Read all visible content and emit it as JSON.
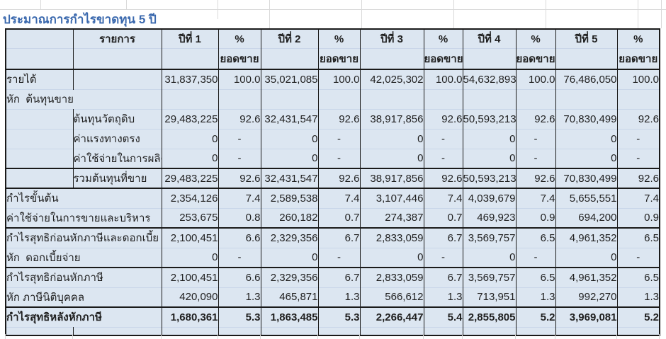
{
  "title": "ประมาณการกำไรขาดทุน 5 ปี",
  "colors": {
    "cell_fill": "#dce6f1",
    "title_blue": "#3b69ae",
    "dark_border": "#1a1a1a",
    "faint_grid": "#d9d9d9"
  },
  "table": {
    "item_header": "รายการ",
    "year_headers": [
      "ปีที่ 1",
      "ปีที่ 2",
      "ปีที่ 3",
      "ปีที่ 4",
      "ปีที่ 5"
    ],
    "pct_header": "%",
    "pct_subheader": "ยอดขาย",
    "rows": [
      {
        "label": "รายได้",
        "layout": "first",
        "values": [
          "31,837,350",
          "100.0",
          "35,021,085",
          "100.0",
          "42,025,302",
          "100.0",
          "54,632,893",
          "100.0",
          "76,486,050",
          "100.0"
        ]
      },
      {
        "label": "หัก  ต้นทุนขาย",
        "layout": "full",
        "values": [
          "",
          "",
          "",
          "",
          "",
          "",
          "",
          "",
          "",
          ""
        ]
      },
      {
        "label": "ต้นทุนวัตถุดิบ",
        "layout": "indent",
        "values": [
          "29,483,225",
          "92.6",
          "32,431,547",
          "92.6",
          "38,917,856",
          "92.6",
          "50,593,213",
          "92.6",
          "70,830,499",
          "92.6"
        ]
      },
      {
        "label": "ค่าแรงทางตรง",
        "layout": "indent",
        "values": [
          "0",
          "-",
          "0",
          "-",
          "0",
          "-",
          "0",
          "-",
          "0",
          "-"
        ]
      },
      {
        "label": "ค่าใช้จ่ายในการผลิต",
        "layout": "indent",
        "values": [
          "0",
          "-",
          "0",
          "-",
          "0",
          "-",
          "0",
          "-",
          "0",
          "-"
        ]
      },
      {
        "label": "รวมต้นทุนที่ขาย",
        "layout": "indent",
        "border_top": true,
        "values": [
          "29,483,225",
          "92.6",
          "32,431,547",
          "92.6",
          "38,917,856",
          "92.6",
          "50,593,213",
          "92.6",
          "70,830,499",
          "92.6"
        ]
      },
      {
        "label": "กำไรขั้นต้น",
        "layout": "full",
        "border_top": true,
        "values": [
          "2,354,126",
          "7.4",
          "2,589,538",
          "7.4",
          "3,107,446",
          "7.4",
          "4,039,679",
          "7.4",
          "5,655,551",
          "7.4"
        ]
      },
      {
        "label": "ค่าใช้จ่ายในการขายและบริหาร",
        "layout": "full",
        "values": [
          "253,675",
          "0.8",
          "260,182",
          "0.7",
          "274,387",
          "0.7",
          "469,923",
          "0.9",
          "694,200",
          "0.9"
        ]
      },
      {
        "label": "กำไรสุทธิก่อนหักภาษีและดอกเบี้ย",
        "layout": "full",
        "border_top": true,
        "values": [
          "2,100,451",
          "6.6",
          "2,329,356",
          "6.7",
          "2,833,059",
          "6.7",
          "3,569,757",
          "6.5",
          "4,961,352",
          "6.5"
        ]
      },
      {
        "label": "หัก  ดอกเบี้ยจ่าย",
        "layout": "full",
        "values": [
          "0",
          "-",
          "0",
          "-",
          "0",
          "-",
          "0",
          "-",
          "0",
          "-"
        ]
      },
      {
        "label": "กำไรสุทธิก่อนหักภาษี",
        "layout": "full",
        "border_top": true,
        "values": [
          "2,100,451",
          "6.6",
          "2,329,356",
          "6.7",
          "2,833,059",
          "6.7",
          "3,569,757",
          "6.5",
          "4,961,352",
          "6.5"
        ]
      },
      {
        "label": "หัก ภาษีนิติบุคคล",
        "layout": "full",
        "values": [
          "420,090",
          "1.3",
          "465,871",
          "1.3",
          "566,612",
          "1.3",
          "713,951",
          "1.3",
          "992,270",
          "1.3"
        ]
      },
      {
        "label": "กำไรสุทธิหลังหักภาษี",
        "layout": "full",
        "bold": true,
        "border_top": true,
        "values": [
          "1,680,361",
          "5.3",
          "1,863,485",
          "5.3",
          "2,266,447",
          "5.4",
          "2,855,805",
          "5.2",
          "3,969,081",
          "5.2"
        ]
      },
      {
        "label": "",
        "layout": "spacer",
        "values": [
          "",
          "",
          "",
          "",
          "",
          "",
          "",
          "",
          "",
          ""
        ]
      }
    ]
  }
}
